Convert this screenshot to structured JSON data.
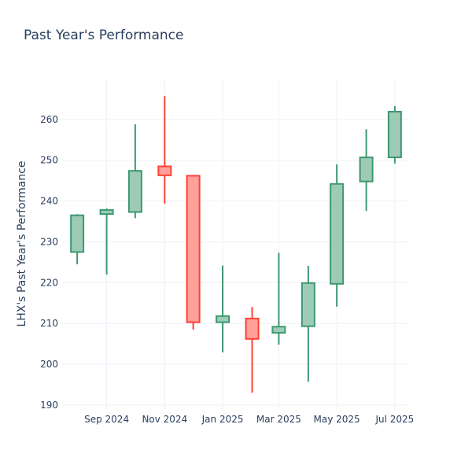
{
  "chart_data": {
    "type": "candlestick",
    "title": "Past Year's Performance",
    "xlabel": "",
    "ylabel": "LHX's Past Year's Performance",
    "ylim": [
      189,
      270
    ],
    "yticks": [
      190,
      200,
      210,
      220,
      230,
      240,
      250,
      260
    ],
    "xticks": [
      {
        "date": "2024-09-01",
        "label": "Sep 2024"
      },
      {
        "date": "2024-11-01",
        "label": "Nov 2024"
      },
      {
        "date": "2025-01-01",
        "label": "Jan 2025"
      },
      {
        "date": "2025-03-01",
        "label": "Mar 2025"
      },
      {
        "date": "2025-05-01",
        "label": "May 2025"
      },
      {
        "date": "2025-07-01",
        "label": "Jul 2025"
      }
    ],
    "xrange": [
      "2024-07-17",
      "2025-07-16"
    ],
    "grid": true,
    "colors": {
      "increasing": "#3d9970",
      "increasing_fill": "#9ecbb5",
      "decreasing": "#ff4136",
      "decreasing_fill": "#ffa09b",
      "text": "#2a3f5f"
    },
    "candles": [
      {
        "date": "2024-08-01",
        "open": 227.5,
        "high": 236.8,
        "low": 224.5,
        "close": 236.5
      },
      {
        "date": "2024-09-01",
        "open": 236.8,
        "high": 238.2,
        "low": 222.0,
        "close": 237.8
      },
      {
        "date": "2024-10-01",
        "open": 237.3,
        "high": 258.8,
        "low": 235.8,
        "close": 247.4
      },
      {
        "date": "2024-11-01",
        "open": 248.5,
        "high": 265.7,
        "low": 239.4,
        "close": 246.3
      },
      {
        "date": "2024-12-01",
        "open": 246.2,
        "high": 246.2,
        "low": 208.5,
        "close": 210.3
      },
      {
        "date": "2025-01-01",
        "open": 210.3,
        "high": 224.2,
        "low": 202.9,
        "close": 211.8
      },
      {
        "date": "2025-02-01",
        "open": 211.2,
        "high": 214.0,
        "low": 193.0,
        "close": 206.2
      },
      {
        "date": "2025-03-01",
        "open": 207.7,
        "high": 227.3,
        "low": 204.8,
        "close": 209.2
      },
      {
        "date": "2025-04-01",
        "open": 209.3,
        "high": 224.1,
        "low": 195.7,
        "close": 219.9
      },
      {
        "date": "2025-05-01",
        "open": 219.7,
        "high": 249.0,
        "low": 214.1,
        "close": 244.2
      },
      {
        "date": "2025-06-01",
        "open": 244.8,
        "high": 257.6,
        "low": 237.6,
        "close": 250.7
      },
      {
        "date": "2025-07-01",
        "open": 250.7,
        "high": 263.3,
        "low": 249.2,
        "close": 261.9
      }
    ]
  }
}
